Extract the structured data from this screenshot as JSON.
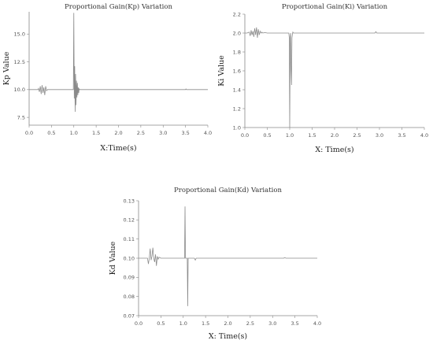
{
  "chart_data": [
    {
      "type": "line",
      "title": "Proportional Gain(Kp) Variation",
      "xlabel": "X:Time(s)",
      "ylabel": "Kp Value",
      "xlim": [
        0.0,
        4.0
      ],
      "ylim": [
        6.8,
        17.0
      ],
      "xticks": [
        0.0,
        0.5,
        1.0,
        1.5,
        2.0,
        2.5,
        3.0,
        3.5,
        4.0
      ],
      "xtick_labels": [
        "0.0",
        "0.5",
        "1.0",
        "1.5",
        "2.0",
        "2.5",
        "3.0",
        "3.5",
        "4.0"
      ],
      "yticks": [
        7.5,
        10.0,
        12.5,
        15.0
      ],
      "ytick_labels": [
        "7.5",
        "10.0",
        "12.5",
        "15.0"
      ],
      "grid": false,
      "color": "#8a8a8a",
      "series": [
        {
          "x": [
            0.0,
            0.2,
            0.21,
            0.23,
            0.25,
            0.27,
            0.29,
            0.31,
            0.33,
            0.35,
            0.37,
            0.39,
            0.41,
            0.5,
            0.8,
            0.99,
            1.0,
            1.01,
            1.02,
            1.03,
            1.04,
            1.05,
            1.06,
            1.07,
            1.08,
            1.09,
            1.1,
            1.11,
            1.12,
            1.13,
            1.15,
            1.2,
            2.0,
            3.0,
            3.5,
            3.51,
            3.52,
            4.0
          ],
          "y": [
            10.0,
            10.0,
            10.1,
            9.8,
            10.3,
            9.6,
            10.4,
            9.7,
            10.2,
            9.5,
            10.3,
            9.9,
            10.0,
            10.0,
            10.0,
            10.0,
            16.9,
            9.2,
            12.1,
            8.0,
            11.4,
            8.6,
            10.8,
            9.3,
            10.6,
            9.5,
            10.2,
            9.7,
            10.1,
            10.0,
            10.0,
            10.0,
            10.0,
            10.0,
            10.0,
            10.06,
            10.0,
            10.0
          ]
        }
      ]
    },
    {
      "type": "line",
      "title": "Proportional Gain(Ki) Variation",
      "xlabel": "X: Time(s)",
      "ylabel": "Ki Value",
      "xlim": [
        0.0,
        4.0
      ],
      "ylim": [
        1.0,
        2.2
      ],
      "xticks": [
        0.0,
        0.5,
        1.0,
        1.5,
        2.0,
        2.5,
        3.0,
        3.5,
        4.0
      ],
      "xtick_labels": [
        "0.0",
        "0.5",
        "1.0",
        "1.5",
        "2.0",
        "2.5",
        "3.0",
        "3.5",
        "4.0"
      ],
      "yticks": [
        1.0,
        1.2,
        1.4,
        1.6,
        1.8,
        2.0,
        2.2
      ],
      "ytick_labels": [
        "1.0",
        "1.2",
        "1.4",
        "1.6",
        "1.8",
        "2.0",
        "2.2"
      ],
      "grid": false,
      "color": "#8a8a8a",
      "series": [
        {
          "x": [
            0.0,
            0.05,
            0.1,
            0.12,
            0.14,
            0.16,
            0.18,
            0.2,
            0.22,
            0.24,
            0.26,
            0.28,
            0.3,
            0.32,
            0.34,
            0.36,
            0.38,
            0.4,
            0.45,
            0.5,
            0.6,
            0.9,
            0.98,
            0.99,
            1.0,
            1.01,
            1.02,
            1.03,
            1.04,
            1.05,
            1.06,
            1.07,
            1.08,
            1.1,
            1.2,
            2.0,
            2.9,
            2.92,
            2.94,
            3.0,
            4.0
          ],
          "y": [
            2.0,
            2.0,
            2.01,
            1.97,
            2.03,
            1.98,
            2.02,
            1.96,
            2.05,
            1.98,
            2.06,
            1.95,
            2.04,
            1.98,
            2.02,
            2.0,
            2.01,
            2.0,
            2.005,
            2.0,
            2.0,
            2.0,
            2.0,
            1.95,
            1.0,
            1.96,
            2.0,
            1.6,
            1.45,
            1.95,
            1.99,
            2.01,
            2.0,
            2.0,
            2.0,
            2.0,
            2.0,
            2.015,
            2.0,
            2.0,
            2.0
          ]
        }
      ]
    },
    {
      "type": "line",
      "title": "Proportional Gain(Kd) Variation",
      "xlabel": "X: Time(s)",
      "ylabel": "Kd Value",
      "xlim": [
        0.0,
        4.0
      ],
      "ylim": [
        0.07,
        0.13
      ],
      "xticks": [
        0.0,
        0.5,
        1.0,
        1.5,
        2.0,
        2.5,
        3.0,
        3.5,
        4.0
      ],
      "xtick_labels": [
        "0.0",
        "0.5",
        "1.0",
        "1.5",
        "2.0",
        "2.5",
        "3.0",
        "3.5",
        "4.0"
      ],
      "yticks": [
        0.07,
        0.08,
        0.09,
        0.1,
        0.11,
        0.12,
        0.13
      ],
      "ytick_labels": [
        "0.07",
        "0.08",
        "0.09",
        "0.10",
        "0.11",
        "0.12",
        "0.13"
      ],
      "grid": false,
      "color": "#8a8a8a",
      "series": [
        {
          "x": [
            0.0,
            0.15,
            0.2,
            0.22,
            0.24,
            0.26,
            0.28,
            0.3,
            0.32,
            0.34,
            0.36,
            0.38,
            0.4,
            0.42,
            0.44,
            0.46,
            0.5,
            0.9,
            1.0,
            1.03,
            1.04,
            1.05,
            1.06,
            1.07,
            1.08,
            1.09,
            1.1,
            1.11,
            1.12,
            1.15,
            1.25,
            1.27,
            1.29,
            1.4,
            2.0,
            3.0,
            3.25,
            3.27,
            3.3,
            4.0
          ],
          "y": [
            0.1,
            0.1,
            0.1,
            0.097,
            0.1,
            0.105,
            0.099,
            0.101,
            0.1055,
            0.1,
            0.098,
            0.102,
            0.096,
            0.101,
            0.0995,
            0.1005,
            0.1,
            0.1,
            0.1,
            0.1,
            0.127,
            0.1,
            0.1,
            0.1,
            0.1,
            0.1,
            0.075,
            0.1,
            0.1,
            0.1,
            0.1,
            0.099,
            0.1,
            0.1,
            0.1,
            0.1,
            0.1,
            0.1003,
            0.1,
            0.1
          ]
        }
      ]
    }
  ]
}
